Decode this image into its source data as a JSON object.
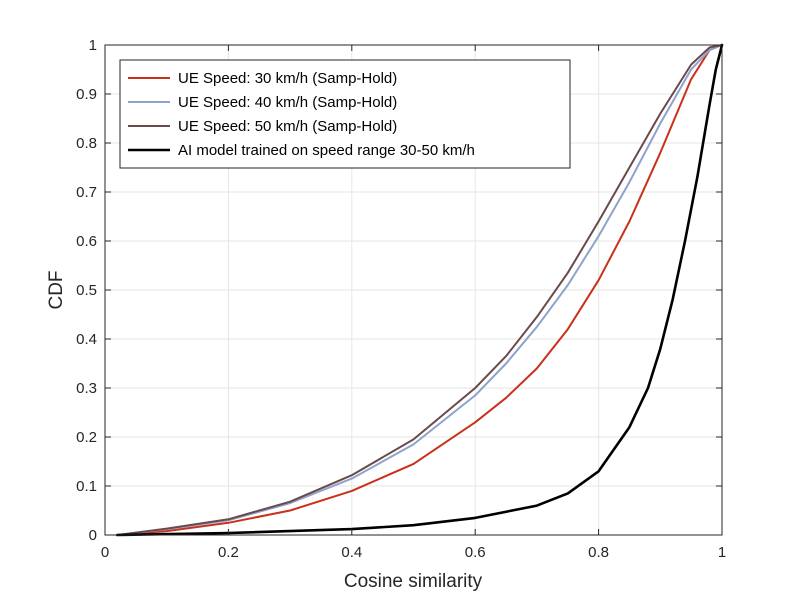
{
  "chart_data": {
    "type": "line",
    "title": "",
    "xlabel": "Cosine similarity",
    "ylabel": "CDF",
    "xlim": [
      0,
      1
    ],
    "ylim": [
      0,
      1
    ],
    "grid": true,
    "legend_position": "top-left",
    "x_ticks": [
      0,
      0.2,
      0.4,
      0.6,
      0.8,
      1
    ],
    "x_tick_labels": [
      "0",
      "0.2",
      "0.4",
      "0.6",
      "0.8",
      "1"
    ],
    "y_ticks": [
      0,
      0.1,
      0.2,
      0.3,
      0.4,
      0.5,
      0.6,
      0.7,
      0.8,
      0.9,
      1
    ],
    "y_tick_labels": [
      "0",
      "0.1",
      "0.2",
      "0.3",
      "0.4",
      "0.5",
      "0.6",
      "0.7",
      "0.8",
      "0.9",
      "1"
    ],
    "series": [
      {
        "name": "UE Speed:  30 km/h (Samp-Hold)",
        "color": "#c8311a",
        "x": [
          0.02,
          0.1,
          0.2,
          0.3,
          0.4,
          0.5,
          0.6,
          0.65,
          0.7,
          0.75,
          0.8,
          0.85,
          0.9,
          0.95,
          0.98,
          1.0
        ],
        "y": [
          0.0,
          0.008,
          0.025,
          0.05,
          0.09,
          0.145,
          0.23,
          0.28,
          0.34,
          0.42,
          0.52,
          0.64,
          0.78,
          0.93,
          0.99,
          1.0
        ]
      },
      {
        "name": "UE Speed:  40 km/h (Samp-Hold)",
        "color": "#8ea2cc",
        "x": [
          0.02,
          0.1,
          0.2,
          0.3,
          0.4,
          0.5,
          0.6,
          0.65,
          0.7,
          0.75,
          0.8,
          0.85,
          0.9,
          0.95,
          0.98,
          1.0
        ],
        "y": [
          0.0,
          0.012,
          0.03,
          0.065,
          0.115,
          0.185,
          0.285,
          0.35,
          0.425,
          0.51,
          0.61,
          0.72,
          0.84,
          0.95,
          0.99,
          1.0
        ]
      },
      {
        "name": "UE Speed:  50 km/h (Samp-Hold)",
        "color": "#6a4a4a",
        "x": [
          0.02,
          0.1,
          0.2,
          0.3,
          0.4,
          0.5,
          0.6,
          0.65,
          0.7,
          0.75,
          0.8,
          0.85,
          0.9,
          0.95,
          0.98,
          1.0
        ],
        "y": [
          0.0,
          0.013,
          0.032,
          0.068,
          0.122,
          0.195,
          0.3,
          0.365,
          0.445,
          0.535,
          0.64,
          0.75,
          0.86,
          0.96,
          0.995,
          1.0
        ]
      },
      {
        "name": "AI model trained on speed range 30-50 km/h",
        "color": "#000000",
        "x": [
          0.02,
          0.2,
          0.4,
          0.5,
          0.6,
          0.7,
          0.75,
          0.8,
          0.85,
          0.88,
          0.9,
          0.92,
          0.94,
          0.96,
          0.98,
          0.99,
          1.0
        ],
        "y": [
          0.0,
          0.004,
          0.012,
          0.02,
          0.035,
          0.06,
          0.085,
          0.13,
          0.22,
          0.3,
          0.38,
          0.48,
          0.6,
          0.73,
          0.88,
          0.95,
          1.0
        ]
      }
    ]
  }
}
